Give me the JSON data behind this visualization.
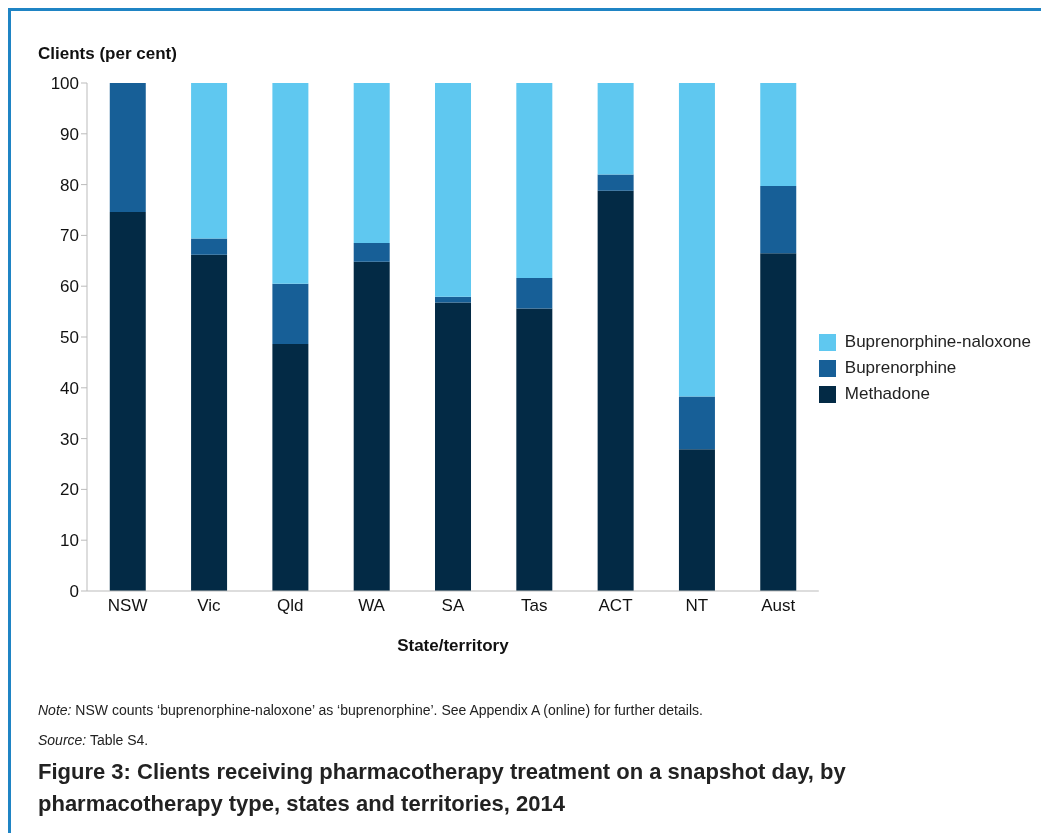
{
  "chart_data": {
    "type": "bar",
    "stacked": true,
    "ylabel": "Clients (per cent)",
    "xlabel": "State/territory",
    "title": "Figure 3: Clients receiving pharmacotherapy treatment on a snapshot day, by pharmacotherapy type, states and territories, 2014",
    "annotations": [
      "Note: NSW counts ‘buprenorphine-naloxone’ as ‘buprenorphine’. See Appendix A (online) for further details.",
      "Source: Table S4."
    ],
    "categories": [
      "NSW",
      "Vic",
      "Qld",
      "WA",
      "SA",
      "Tas",
      "ACT",
      "NT",
      "Aust"
    ],
    "series": [
      {
        "name": "Methadone",
        "color": "#032a45",
        "values": [
          74.6,
          66.2,
          48.6,
          64.8,
          56.8,
          55.6,
          78.8,
          27.9,
          66.5
        ]
      },
      {
        "name": "Buprenorphine",
        "color": "#175f97",
        "values": [
          25.4,
          3.2,
          11.9,
          3.7,
          1.1,
          6.0,
          3.2,
          10.4,
          13.2
        ]
      },
      {
        "name": "Buprenorphine-naloxone",
        "color": "#5fc8f0",
        "values": [
          0,
          30.6,
          39.5,
          31.5,
          42.1,
          38.4,
          18.0,
          61.7,
          20.3
        ]
      }
    ],
    "ylim": [
      0,
      100
    ],
    "yticks": [
      0,
      10,
      20,
      30,
      40,
      50,
      60,
      70,
      80,
      90,
      100
    ],
    "grid": false,
    "legend": "right"
  }
}
